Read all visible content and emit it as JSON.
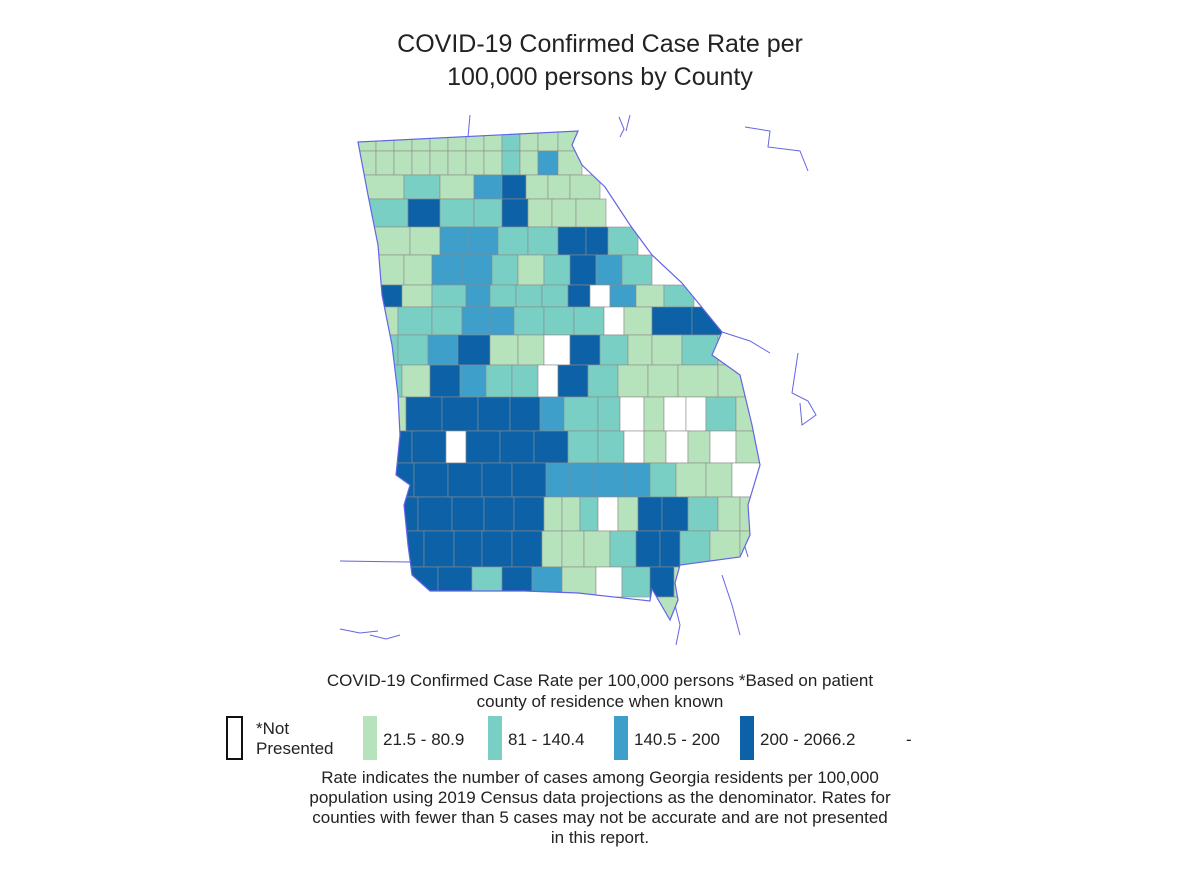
{
  "title_line1": "COVID-19 Confirmed Case Rate per",
  "title_line2": "100,000 persons by County",
  "legend": {
    "title_line1": "COVID-19 Confirmed Case Rate per 100,000 persons *Based on patient",
    "title_line2": "county of residence when known",
    "items": [
      {
        "label_line1": "*Not",
        "label_line2": "Presented",
        "color": "#ffffff"
      },
      {
        "label": "21.5 - 80.9",
        "color": "#b6e3bc"
      },
      {
        "label": "81 - 140.4",
        "color": "#7acfc5"
      },
      {
        "label": "140.5 - 200",
        "color": "#3f9fcb"
      },
      {
        "label": "200 - 2066.2",
        "color": "#0d61a6"
      }
    ],
    "trailing": "-"
  },
  "note": {
    "line1": "Rate indicates the number of cases among Georgia residents per 100,000",
    "line2": "population using 2019 Census data projections as the denominator. Rates for",
    "line3": "counties with fewer than 5 cases may not be accurate and are not presented",
    "line4": "in this report."
  },
  "colors": {
    "border": "#6464e6",
    "county_line": "#8a8a8a"
  }
}
